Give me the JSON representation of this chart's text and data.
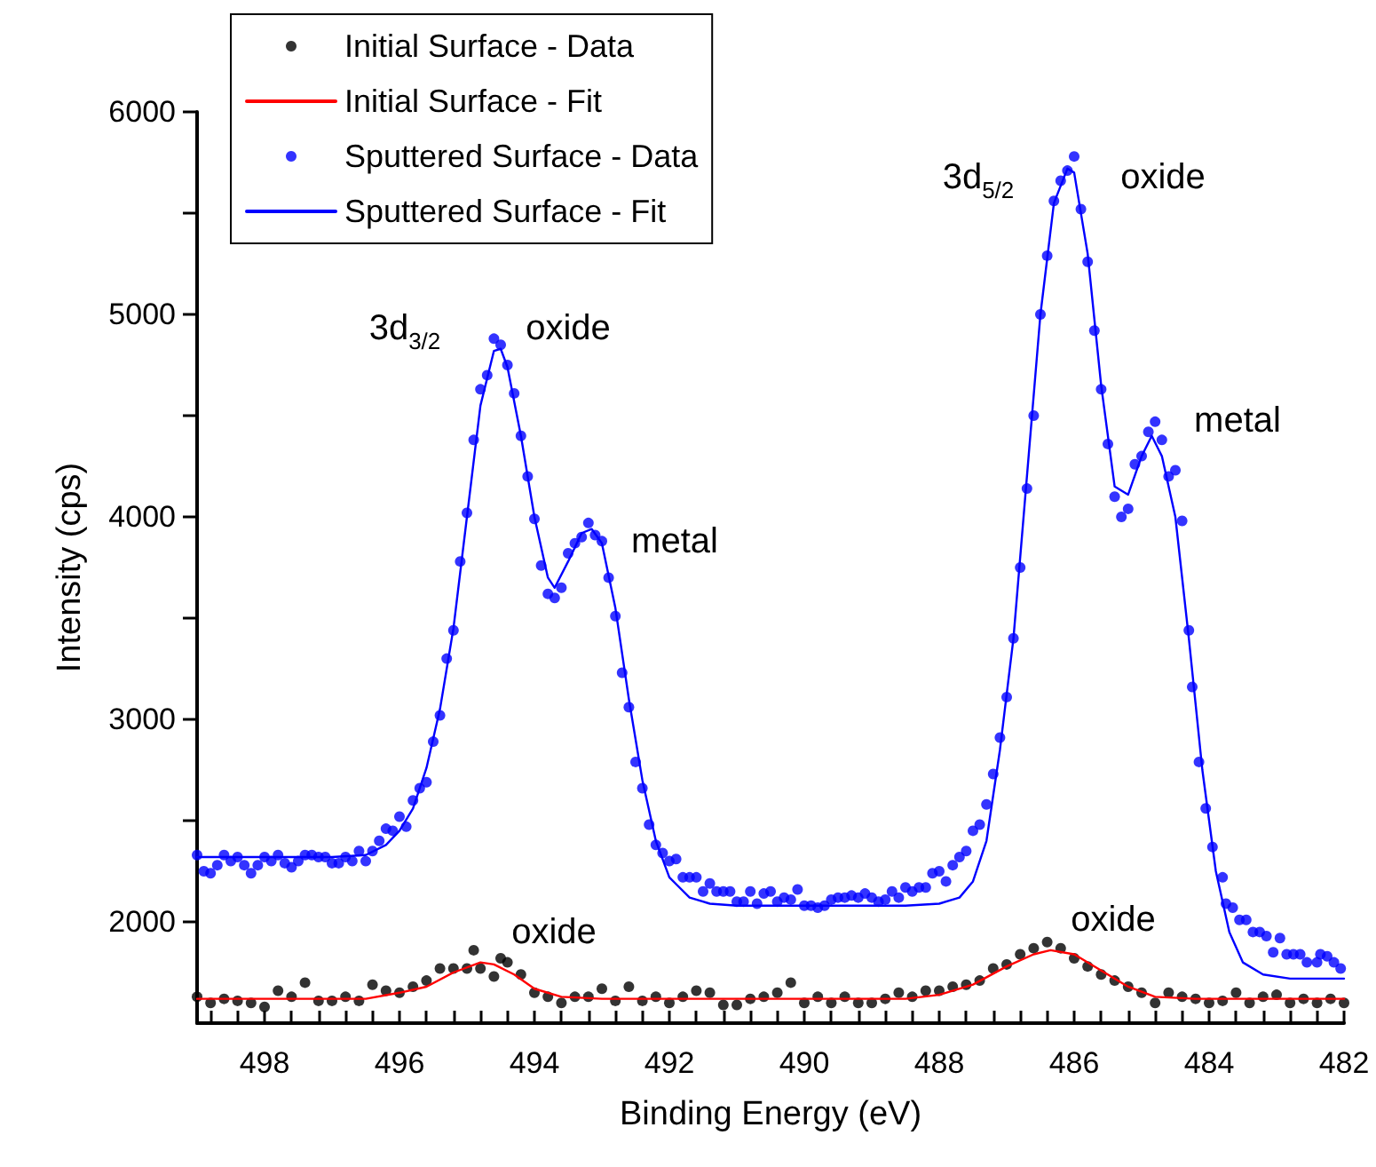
{
  "chart_data": {
    "type": "scatter",
    "xlabel": "Binding Energy (eV)",
    "ylabel": "Intensity (cps)",
    "xlim": [
      499,
      482
    ],
    "ylim": [
      1500,
      6000
    ],
    "xticks": [
      {
        "value": 498.8,
        "label": null
      },
      {
        "value": 498.4,
        "label": null
      },
      498,
      {
        "value": 497.6,
        "label": null
      },
      {
        "value": 497.2,
        "label": null
      },
      {
        "value": 496.8,
        "label": null
      },
      {
        "value": 496.4,
        "label": null
      },
      496,
      {
        "value": 495.6,
        "label": null
      },
      {
        "value": 495.2,
        "label": null
      },
      {
        "value": 494.8,
        "label": null
      },
      {
        "value": 494.4,
        "label": null
      },
      494,
      {
        "value": 493.6,
        "label": null
      },
      {
        "value": 493.2,
        "label": null
      },
      {
        "value": 492.8,
        "label": null
      },
      {
        "value": 492.4,
        "label": null
      },
      492,
      {
        "value": 491.6,
        "label": null
      },
      {
        "value": 491.2,
        "label": null
      },
      {
        "value": 490.8,
        "label": null
      },
      {
        "value": 490.4,
        "label": null
      },
      490,
      {
        "value": 489.6,
        "label": null
      },
      {
        "value": 489.2,
        "label": null
      },
      {
        "value": 488.8,
        "label": null
      },
      {
        "value": 488.4,
        "label": null
      },
      488,
      {
        "value": 487.6,
        "label": null
      },
      {
        "value": 487.2,
        "label": null
      },
      {
        "value": 486.8,
        "label": null
      },
      {
        "value": 486.4,
        "label": null
      },
      486,
      {
        "value": 485.6,
        "label": null
      },
      {
        "value": 485.2,
        "label": null
      },
      {
        "value": 484.8,
        "label": null
      },
      {
        "value": 484.4,
        "label": null
      },
      484,
      {
        "value": 483.6,
        "label": null
      },
      {
        "value": 483.2,
        "label": null
      },
      {
        "value": 482.8,
        "label": null
      },
      {
        "value": 482.4,
        "label": null
      },
      482
    ],
    "yticks": [
      2000,
      {
        "value": 2500,
        "label": null
      },
      3000,
      {
        "value": 3500,
        "label": null
      },
      4000,
      {
        "value": 4500,
        "label": null
      },
      5000,
      {
        "value": 5500,
        "label": null
      },
      6000
    ],
    "grid": false,
    "legend": "top left",
    "marker": "circle",
    "annotations": [
      "3d$_{3/2}$",
      "oxide",
      "metal",
      "3d$_{5/2}$",
      "oxide",
      "metal",
      "oxide",
      "oxide"
    ],
    "series": [
      {
        "name": "Initial Surface - Data",
        "color": "#000000",
        "x": [
          499.0,
          498.8,
          498.6,
          498.4,
          498.2,
          498.0,
          497.8,
          497.6,
          497.4,
          497.2,
          497.0,
          496.8,
          496.6,
          496.4,
          496.2,
          496.0,
          495.8,
          495.6,
          495.4,
          495.2,
          495.0,
          494.9,
          494.8,
          494.6,
          494.5,
          494.4,
          494.2,
          494.0,
          493.8,
          493.6,
          493.4,
          493.2,
          493.0,
          492.8,
          492.6,
          492.4,
          492.2,
          492.0,
          491.8,
          491.6,
          491.4,
          491.2,
          491.0,
          490.8,
          490.6,
          490.4,
          490.2,
          490.0,
          489.8,
          489.6,
          489.4,
          489.2,
          489.0,
          488.8,
          488.6,
          488.4,
          488.2,
          488.0,
          487.8,
          487.6,
          487.4,
          487.2,
          487.0,
          486.8,
          486.6,
          486.4,
          486.2,
          486.0,
          485.8,
          485.6,
          485.4,
          485.2,
          485.0,
          484.8,
          484.6,
          484.4,
          484.2,
          484.0,
          483.8,
          483.6,
          483.4,
          483.2,
          483.0,
          482.8,
          482.6,
          482.4,
          482.2,
          482.0
        ],
        "values": [
          1630,
          1600,
          1620,
          1610,
          1600,
          1580,
          1660,
          1630,
          1700,
          1610,
          1610,
          1630,
          1610,
          1690,
          1660,
          1650,
          1680,
          1710,
          1770,
          1770,
          1770,
          1860,
          1770,
          1730,
          1820,
          1800,
          1740,
          1650,
          1630,
          1600,
          1630,
          1630,
          1670,
          1610,
          1680,
          1610,
          1630,
          1600,
          1630,
          1660,
          1650,
          1590,
          1590,
          1620,
          1630,
          1650,
          1700,
          1600,
          1630,
          1600,
          1630,
          1600,
          1600,
          1620,
          1650,
          1630,
          1660,
          1660,
          1680,
          1690,
          1710,
          1770,
          1790,
          1840,
          1870,
          1900,
          1870,
          1820,
          1780,
          1740,
          1710,
          1680,
          1650,
          1600,
          1650,
          1630,
          1620,
          1600,
          1610,
          1650,
          1600,
          1630,
          1640,
          1600,
          1620,
          1600,
          1620,
          1600
        ]
      },
      {
        "name": "Initial Surface - Fit",
        "type": "line",
        "marker": "none",
        "color": "#ff0000",
        "x": [
          499,
          496.5,
          496,
          495.6,
          495.2,
          494.8,
          494.6,
          494.3,
          494,
          493.6,
          493,
          490,
          488.5,
          488,
          487.5,
          487,
          486.6,
          486.35,
          486,
          485.6,
          485.2,
          484.8,
          484.2,
          482
        ],
        "values": [
          1620,
          1620,
          1650,
          1680,
          1750,
          1800,
          1790,
          1740,
          1670,
          1630,
          1620,
          1620,
          1620,
          1640,
          1690,
          1780,
          1840,
          1860,
          1840,
          1760,
          1680,
          1630,
          1620,
          1620
        ]
      },
      {
        "name": "Sputtered Surface - Data",
        "color": "#0000ff",
        "x": [
          499.0,
          498.9,
          498.8,
          498.7,
          498.6,
          498.5,
          498.4,
          498.3,
          498.2,
          498.1,
          498.0,
          497.9,
          497.8,
          497.7,
          497.6,
          497.5,
          497.4,
          497.3,
          497.2,
          497.1,
          497.0,
          496.9,
          496.8,
          496.7,
          496.6,
          496.5,
          496.4,
          496.3,
          496.2,
          496.1,
          496.0,
          495.9,
          495.8,
          495.7,
          495.6,
          495.5,
          495.4,
          495.3,
          495.2,
          495.1,
          495.0,
          494.9,
          494.8,
          494.7,
          494.6,
          494.5,
          494.4,
          494.3,
          494.2,
          494.1,
          494.0,
          493.9,
          493.8,
          493.7,
          493.6,
          493.5,
          493.4,
          493.3,
          493.2,
          493.1,
          493.0,
          492.9,
          492.8,
          492.7,
          492.6,
          492.5,
          492.4,
          492.3,
          492.2,
          492.1,
          492.0,
          491.9,
          491.8,
          491.7,
          491.6,
          491.5,
          491.4,
          491.3,
          491.2,
          491.1,
          491.0,
          490.9,
          490.8,
          490.7,
          490.6,
          490.5,
          490.4,
          490.3,
          490.2,
          490.1,
          490.0,
          489.9,
          489.8,
          489.7,
          489.6,
          489.5,
          489.4,
          489.3,
          489.2,
          489.1,
          489.0,
          488.9,
          488.8,
          488.7,
          488.6,
          488.5,
          488.4,
          488.3,
          488.2,
          488.1,
          488.0,
          487.9,
          487.8,
          487.7,
          487.6,
          487.5,
          487.4,
          487.3,
          487.2,
          487.1,
          487.0,
          486.9,
          486.8,
          486.7,
          486.6,
          486.5,
          486.4,
          486.3,
          486.2,
          486.1,
          486.0,
          485.9,
          485.8,
          485.7,
          485.6,
          485.5,
          485.4,
          485.3,
          485.2,
          485.1,
          485.0,
          484.9,
          484.8,
          484.7,
          484.6,
          484.5,
          484.4,
          484.3,
          484.25,
          484.15,
          484.05,
          483.95,
          483.8,
          483.75,
          483.65,
          483.55,
          483.45,
          483.35,
          483.25,
          483.15,
          483.05,
          482.95,
          482.85,
          482.75,
          482.65,
          482.55,
          482.4,
          482.35,
          482.25,
          482.15,
          482.05
        ],
        "values": [
          2330,
          2250,
          2240,
          2280,
          2330,
          2300,
          2320,
          2280,
          2240,
          2280,
          2320,
          2300,
          2330,
          2290,
          2270,
          2300,
          2330,
          2330,
          2320,
          2320,
          2290,
          2290,
          2320,
          2300,
          2350,
          2300,
          2350,
          2400,
          2460,
          2450,
          2520,
          2470,
          2600,
          2660,
          2690,
          2890,
          3020,
          3300,
          3440,
          3780,
          4020,
          4380,
          4630,
          4700,
          4880,
          4850,
          4750,
          4610,
          4400,
          4200,
          3990,
          3760,
          3620,
          3600,
          3650,
          3820,
          3870,
          3900,
          3970,
          3910,
          3880,
          3700,
          3510,
          3230,
          3060,
          2790,
          2660,
          2480,
          2380,
          2340,
          2300,
          2310,
          2220,
          2220,
          2220,
          2150,
          2190,
          2150,
          2150,
          2150,
          2100,
          2100,
          2150,
          2090,
          2140,
          2150,
          2100,
          2120,
          2110,
          2160,
          2080,
          2080,
          2070,
          2080,
          2110,
          2120,
          2120,
          2130,
          2120,
          2140,
          2120,
          2100,
          2110,
          2150,
          2120,
          2170,
          2150,
          2170,
          2170,
          2240,
          2250,
          2200,
          2280,
          2320,
          2350,
          2450,
          2480,
          2580,
          2730,
          2910,
          3110,
          3400,
          3750,
          4140,
          4500,
          5000,
          5290,
          5560,
          5660,
          5710,
          5780,
          5520,
          5260,
          4920,
          4630,
          4360,
          4100,
          4000,
          4040,
          4260,
          4300,
          4420,
          4470,
          4380,
          4200,
          4230,
          3980,
          3440,
          3160,
          2790,
          2560,
          2370,
          2220,
          2090,
          2070,
          2010,
          2010,
          1950,
          1950,
          1930,
          1850,
          1920,
          1840,
          1840,
          1840,
          1800,
          1800,
          1840,
          1830,
          1800,
          1770
        ]
      },
      {
        "name": "Sputtered Surface - Fit",
        "type": "line",
        "marker": "none",
        "color": "#0000ff",
        "x": [
          499,
          497,
          496.5,
          496.2,
          496.0,
          495.8,
          495.6,
          495.4,
          495.2,
          495.0,
          494.8,
          494.6,
          494.5,
          494.4,
          494.2,
          494.0,
          493.8,
          493.7,
          493.5,
          493.3,
          493.15,
          493.0,
          492.8,
          492.6,
          492.4,
          492.2,
          492.0,
          491.7,
          491.4,
          491.0,
          490,
          488.5,
          488.0,
          487.7,
          487.5,
          487.3,
          487.1,
          486.9,
          486.7,
          486.5,
          486.3,
          486.1,
          486.0,
          485.8,
          485.6,
          485.4,
          485.2,
          485.0,
          484.85,
          484.7,
          484.5,
          484.3,
          484.1,
          483.9,
          483.7,
          483.5,
          483.2,
          482.8,
          482
        ],
        "values": [
          2320,
          2320,
          2330,
          2380,
          2450,
          2560,
          2760,
          3050,
          3450,
          4000,
          4550,
          4820,
          4830,
          4740,
          4400,
          4000,
          3700,
          3650,
          3780,
          3920,
          3940,
          3870,
          3550,
          3100,
          2700,
          2400,
          2220,
          2120,
          2090,
          2080,
          2080,
          2080,
          2090,
          2120,
          2200,
          2400,
          2850,
          3400,
          4200,
          5000,
          5550,
          5720,
          5700,
          5300,
          4650,
          4150,
          4110,
          4300,
          4400,
          4300,
          4000,
          3400,
          2750,
          2250,
          1950,
          1800,
          1740,
          1720,
          1720
        ]
      }
    ]
  }
}
